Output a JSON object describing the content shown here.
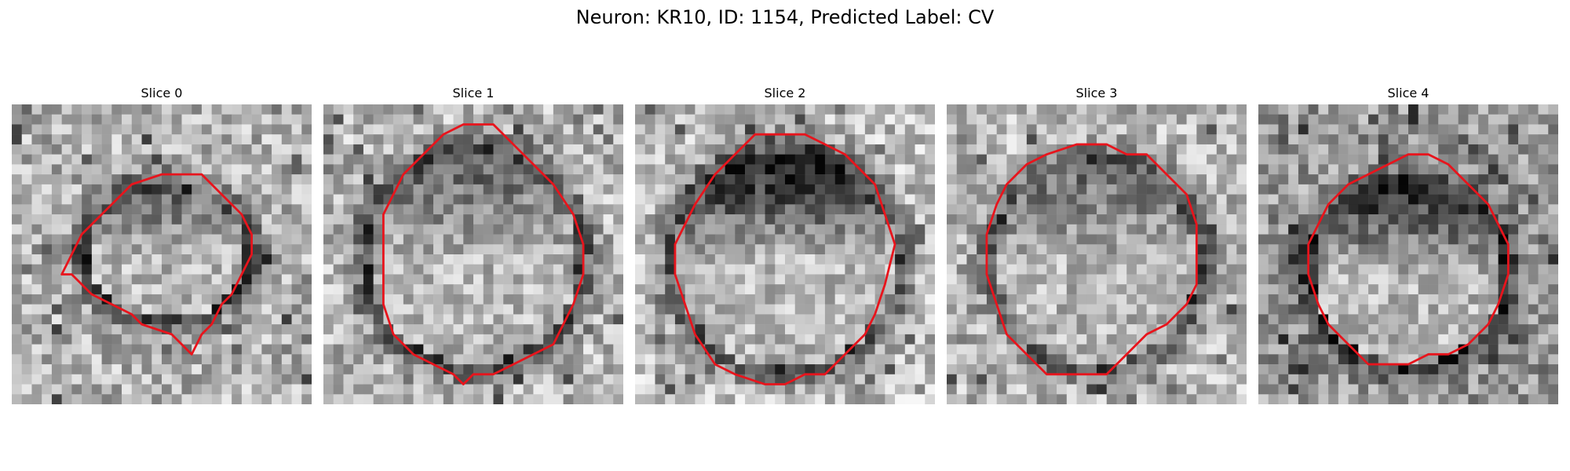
{
  "figure": {
    "title": "Neuron: KR10, ID: 1154, Predicted Label: CV"
  },
  "colors": {
    "background": "#ffffff",
    "outline": "#e8141c"
  },
  "panels": [
    {
      "title": "Slice 0"
    },
    {
      "title": "Slice 1"
    },
    {
      "title": "Slice 2"
    },
    {
      "title": "Slice 3"
    },
    {
      "title": "Slice 4"
    }
  ]
}
